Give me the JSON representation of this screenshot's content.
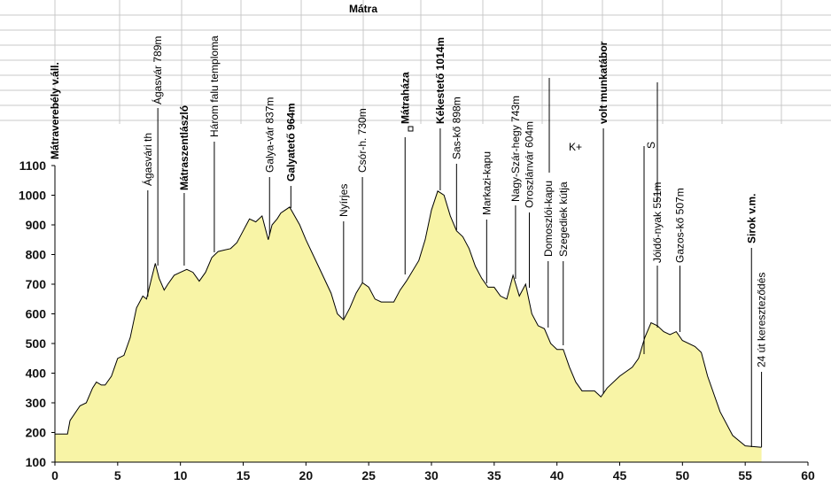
{
  "chart_data": {
    "type": "area",
    "title": "Mátra",
    "x": [
      0,
      1,
      1.2,
      2,
      2.5,
      3,
      3.3,
      3.7,
      4,
      4.5,
      5,
      5.5,
      6,
      6.5,
      7,
      7.3,
      7.7,
      8,
      8.3,
      8.7,
      9,
      9.5,
      10,
      10.5,
      11,
      11.5,
      12,
      12.5,
      13,
      14,
      14.5,
      15,
      15.5,
      16,
      16.5,
      17,
      17.3,
      17.7,
      18,
      18.7,
      19.5,
      20,
      21,
      22,
      22.5,
      23,
      23.5,
      24,
      24.5,
      25,
      25.5,
      26,
      27,
      27.5,
      28,
      29,
      29.5,
      30,
      30.5,
      31,
      31.5,
      32,
      32.5,
      33,
      33.5,
      34,
      34.5,
      35,
      35.5,
      36,
      36.5,
      37,
      37.5,
      38,
      38.5,
      39,
      39.5,
      40,
      40.5,
      41,
      41.5,
      42,
      43,
      43.5,
      44,
      45,
      46,
      46.5,
      47,
      47.5,
      48,
      48.5,
      49,
      49.5,
      50,
      51,
      51.5,
      52,
      53,
      54,
      55,
      56.3
    ],
    "series": [
      {
        "name": "Mátra",
        "color": "#f8f4a6",
        "values": [
          195,
          195,
          240,
          290,
          300,
          350,
          370,
          360,
          360,
          390,
          450,
          460,
          520,
          620,
          660,
          650,
          720,
          770,
          720,
          680,
          700,
          730,
          740,
          750,
          740,
          710,
          740,
          790,
          810,
          820,
          840,
          880,
          920,
          910,
          930,
          850,
          900,
          920,
          940,
          960,
          900,
          850,
          760,
          670,
          600,
          580,
          620,
          670,
          705,
          690,
          650,
          640,
          640,
          680,
          710,
          780,
          850,
          950,
          1014,
          1000,
          930,
          880,
          860,
          820,
          760,
          720,
          690,
          690,
          660,
          650,
          730,
          660,
          700,
          600,
          560,
          550,
          500,
          480,
          480,
          420,
          370,
          340,
          340,
          320,
          350,
          390,
          420,
          450,
          520,
          570,
          560,
          540,
          530,
          540,
          510,
          490,
          470,
          390,
          270,
          190,
          155,
          150
        ]
      }
    ],
    "xlim": [
      0,
      60
    ],
    "xticks": [
      0,
      5,
      10,
      15,
      20,
      25,
      30,
      35,
      40,
      45,
      50,
      55,
      60
    ],
    "ylim": [
      100,
      1100
    ],
    "yticks": [
      100,
      200,
      300,
      400,
      500,
      600,
      700,
      800,
      900,
      1000,
      1100
    ],
    "annotations": [
      {
        "text": "Mátraverebély v.áll.",
        "x": 0,
        "bold": true
      },
      {
        "text": "Ágasvári th",
        "x": 7.4,
        "bold": false
      },
      {
        "text": "Ágasvár  789m",
        "x": 8.2,
        "bold": false
      },
      {
        "text": "Mátraszentlászló",
        "x": 10.3,
        "bold": true
      },
      {
        "text": "Három falu temploma",
        "x": 12.7,
        "bold": false
      },
      {
        "text": "Galya-vár  837m",
        "x": 17.1,
        "bold": false
      },
      {
        "text": "Galyatető  964m",
        "x": 18.8,
        "bold": true
      },
      {
        "text": "Nyírjes",
        "x": 23.0,
        "bold": false
      },
      {
        "text": "Csór-h. 730m",
        "x": 24.5,
        "bold": false
      },
      {
        "text": "Mátraháza",
        "x": 27.9,
        "bold": true
      },
      {
        "text": "Kékestető  1014m",
        "x": 30.7,
        "bold": true
      },
      {
        "text": "Sas-kő  898m",
        "x": 32.0,
        "bold": false
      },
      {
        "text": "Markazi-kapu",
        "x": 34.4,
        "bold": false
      },
      {
        "text": "Nagy-Szár-hegy  743m",
        "x": 36.7,
        "bold": false
      },
      {
        "text": "Oroszlánvár  604m",
        "x": 37.8,
        "bold": false
      },
      {
        "text": "Domoszlói-kapu",
        "x": 39.3,
        "bold": false
      },
      {
        "text": "Szegediek kútja",
        "x": 40.5,
        "bold": false
      },
      {
        "text": "volt munkatábor",
        "x": 43.7,
        "bold": true
      },
      {
        "text": "S",
        "x": 47.5,
        "bold": false
      },
      {
        "text": "Jóidő-nyak  551m",
        "x": 48.0,
        "bold": false
      },
      {
        "text": "Gazos-kő  507m",
        "x": 49.8,
        "bold": false
      },
      {
        "text": "Sirok v.m.",
        "x": 55.5,
        "bold": true
      },
      {
        "text": "24 út kereszteződés",
        "x": 56.3,
        "bold": false
      }
    ],
    "note": "K+"
  }
}
